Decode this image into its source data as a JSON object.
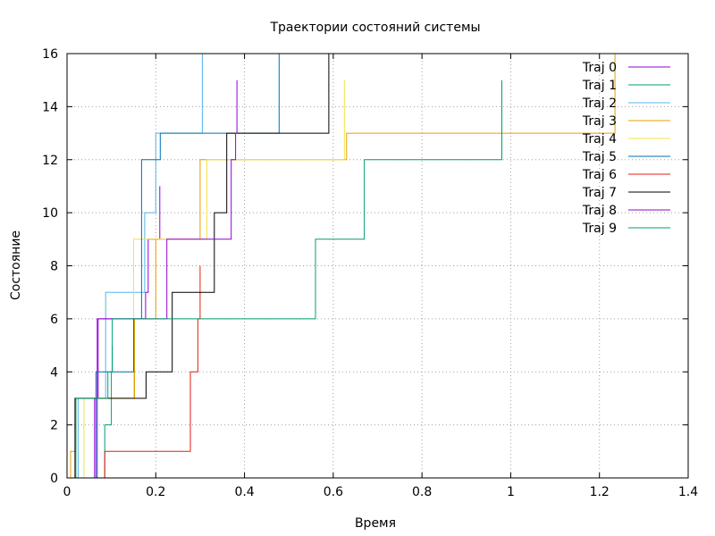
{
  "chart_data": {
    "type": "line",
    "step": "post",
    "title": "Траектории состояний системы",
    "xlabel": "Время",
    "ylabel": "Состояние",
    "xlim": [
      0,
      1.4
    ],
    "ylim": [
      0,
      16
    ],
    "xticks": [
      0,
      0.2,
      0.4,
      0.6,
      0.8,
      1,
      1.2,
      1.4
    ],
    "xtick_labels": [
      "0",
      "0.2",
      "0.4",
      "0.6",
      "0.8",
      "1",
      "1.2",
      "1.4"
    ],
    "yticks": [
      0,
      2,
      4,
      6,
      8,
      10,
      12,
      14,
      16
    ],
    "ytick_labels": [
      "0",
      "2",
      "4",
      "6",
      "8",
      "10",
      "12",
      "14",
      "16"
    ],
    "grid": true,
    "legend_position": "top-right",
    "series": [
      {
        "name": "Traj 0",
        "color": "#9400d3",
        "x": [
          0,
          0.062,
          0.07,
          0.09,
          0.177,
          0.183,
          0.209
        ],
        "y": [
          0,
          3,
          6,
          6,
          7,
          9,
          11
        ]
      },
      {
        "name": "Traj 1",
        "color": "#009e73",
        "x": [
          0,
          0.085,
          0.1,
          0.102
        ],
        "y": [
          0,
          2,
          4,
          5
        ]
      },
      {
        "name": "Traj 2",
        "color": "#56b4e9",
        "x": [
          0,
          0.025,
          0.087,
          0.17,
          0.175,
          0.2,
          0.305
        ],
        "y": [
          0,
          3,
          7,
          7,
          10,
          13,
          16
        ]
      },
      {
        "name": "Traj 3",
        "color": "#e69f00",
        "x": [
          0,
          0.008,
          0.02,
          0.152,
          0.2,
          0.3,
          0.31,
          0.63,
          1.235
        ],
        "y": [
          0,
          1,
          3,
          6,
          9,
          12,
          12,
          13,
          16
        ]
      },
      {
        "name": "Traj 4",
        "color": "#f0e442",
        "x": [
          0,
          0.038,
          0.15,
          0.16,
          0.315,
          0.625
        ],
        "y": [
          0,
          3,
          9,
          9,
          12,
          15
        ]
      },
      {
        "name": "Traj 5",
        "color": "#0072b2",
        "x": [
          0,
          0.065,
          0.15,
          0.168,
          0.21,
          0.478
        ],
        "y": [
          0,
          4,
          6,
          12,
          13,
          16
        ]
      },
      {
        "name": "Traj 6",
        "color": "#e51e10",
        "x": [
          0,
          0.085,
          0.278,
          0.295,
          0.3
        ],
        "y": [
          0,
          1,
          4,
          6,
          8
        ]
      },
      {
        "name": "Traj 7",
        "color": "#000000",
        "x": [
          0,
          0.018,
          0.12,
          0.178,
          0.237,
          0.332,
          0.36,
          0.36,
          0.59,
          0.59
        ],
        "y": [
          0,
          3,
          3,
          4,
          7,
          10,
          13,
          13,
          16,
          16
        ]
      },
      {
        "name": "Traj 8",
        "color": "#9400d3",
        "x": [
          0,
          0.068,
          0.225,
          0.37,
          0.38,
          0.383
        ],
        "y": [
          0,
          6,
          9,
          12,
          13,
          15
        ]
      },
      {
        "name": "Traj 9",
        "color": "#009e73",
        "x": [
          0,
          0.02,
          0.092,
          0.102,
          0.56,
          0.67,
          0.98
        ],
        "y": [
          0,
          3,
          4,
          6,
          9,
          12,
          15
        ]
      }
    ]
  }
}
